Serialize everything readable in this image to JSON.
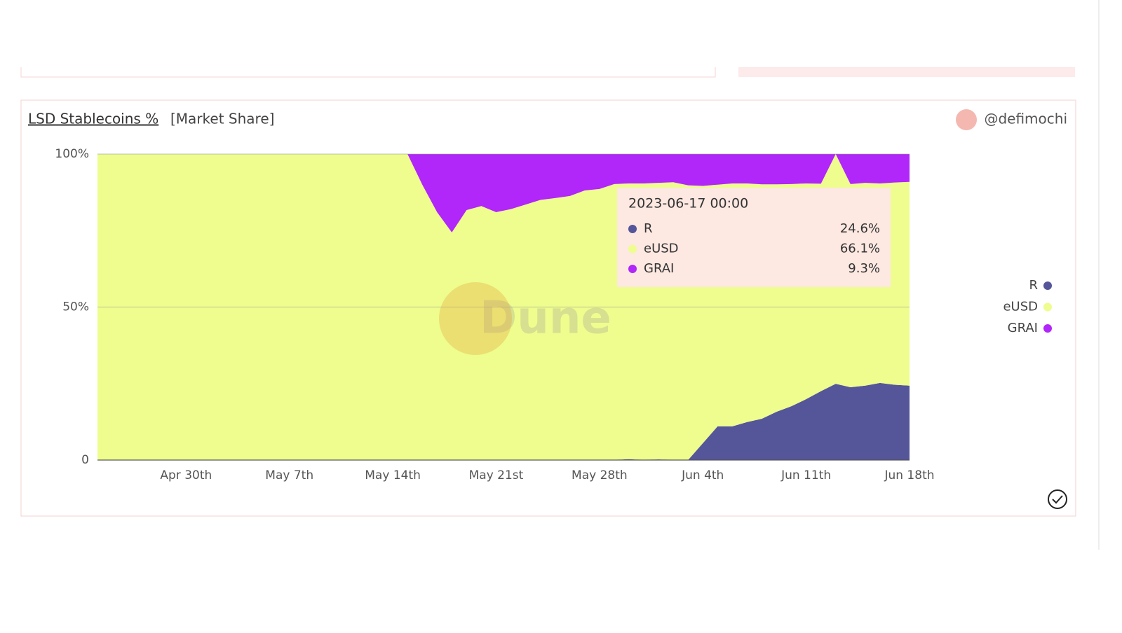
{
  "header": {
    "title": "LSD Stablecoins %",
    "subtitle": "[Market Share]",
    "author": "@defimochi"
  },
  "chart_data": {
    "type": "stacked-area",
    "watermark": "Dune",
    "categories": [
      null,
      null,
      null,
      null,
      null,
      null,
      "Apr 30th",
      null,
      null,
      null,
      null,
      null,
      null,
      "May 7th",
      null,
      null,
      null,
      null,
      null,
      null,
      "May 14th",
      null,
      null,
      null,
      null,
      null,
      null,
      "May 21st",
      null,
      null,
      null,
      null,
      null,
      null,
      "May 28th",
      null,
      null,
      null,
      null,
      null,
      null,
      "Jun 4th",
      null,
      null,
      null,
      null,
      null,
      null,
      "Jun 11th",
      null,
      null,
      null,
      null,
      null,
      null,
      "Jun 18th"
    ],
    "series": [
      {
        "name": "R",
        "color": "#55559a",
        "values": [
          0,
          0,
          0,
          0,
          0,
          0,
          0,
          0,
          0,
          0,
          0,
          0,
          0,
          0,
          0,
          0,
          0,
          0,
          0,
          0,
          0,
          0,
          0,
          0,
          0,
          0,
          0,
          0,
          0,
          0,
          0,
          0,
          0,
          0,
          0,
          0,
          0.3,
          0,
          0.2,
          0,
          0,
          5.5,
          11,
          11,
          12.4,
          13.5,
          15.8,
          17.6,
          19.9,
          22.5,
          24.9,
          23.8,
          24.3,
          25.2,
          24.6,
          24.3
        ]
      },
      {
        "name": "eUSD",
        "color": "#eefd8d",
        "values": [
          100,
          100,
          100,
          100,
          100,
          100,
          100,
          100,
          100,
          100,
          100,
          100,
          100,
          100,
          100,
          100,
          100,
          100,
          100,
          100,
          100,
          100,
          90,
          81,
          74.4,
          81.7,
          83,
          81,
          82,
          83.5,
          85,
          85.6,
          86.3,
          88.1,
          88.6,
          90.2,
          90.1,
          90.4,
          90.4,
          90.8,
          89.8,
          84.1,
          79,
          79.4,
          78,
          76.6,
          74.3,
          72.6,
          70.5,
          67.8,
          75.1,
          66.4,
          66.3,
          65.2,
          66.1,
          66.6
        ]
      },
      {
        "name": "GRAI",
        "color": "#b126f8",
        "values": [
          0,
          0,
          0,
          0,
          0,
          0,
          0,
          0,
          0,
          0,
          0,
          0,
          0,
          0,
          0,
          0,
          0,
          0,
          0,
          0,
          0,
          0,
          10,
          19,
          25.6,
          18.3,
          17,
          19,
          18,
          16.5,
          15,
          14.4,
          13.7,
          11.9,
          11.4,
          9.8,
          9.6,
          9.6,
          9.4,
          9.2,
          10.2,
          10.4,
          10,
          9.6,
          9.6,
          9.9,
          9.9,
          9.8,
          9.6,
          9.7,
          0,
          9.8,
          9.4,
          9.6,
          9.3,
          9.1
        ]
      }
    ],
    "ylim": [
      0,
      100
    ],
    "yticks": [
      0,
      {
        "value": 50,
        "label": "50%"
      },
      {
        "value": 100,
        "label": "100%"
      }
    ],
    "grid": true,
    "legend": "right",
    "tooltip": {
      "title": "2023-06-17 00:00",
      "values": [
        24.6,
        66.1,
        9.3
      ],
      "value_labels": [
        "24.6%",
        "66.1%",
        "9.3%"
      ]
    }
  }
}
